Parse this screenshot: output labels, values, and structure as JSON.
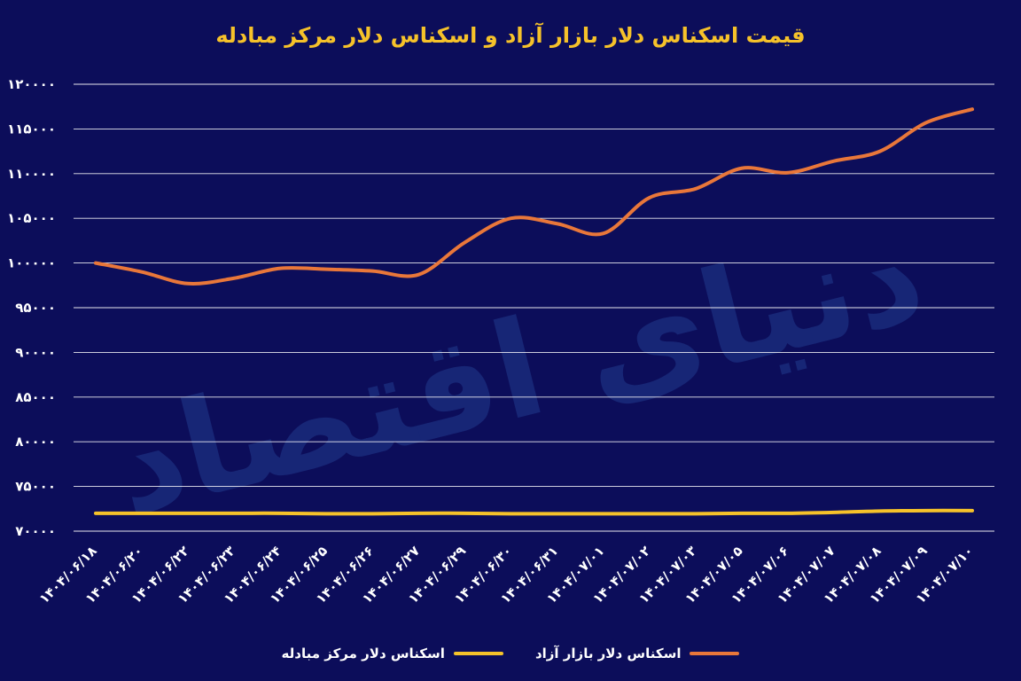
{
  "chart_data": {
    "type": "line",
    "title": "قیمت اسکناس دلار بازار آزاد و اسکناس دلار مرکز مبادله",
    "xlabel": "",
    "ylabel": "",
    "ylim": [
      70000,
      120000
    ],
    "yticks": [
      "120000",
      "115000",
      "110000",
      "105000",
      "100000",
      "95000",
      "90000",
      "85000",
      "80000",
      "75000",
      "70000"
    ],
    "categories": [
      "1404/06/18",
      "1404/06/20",
      "1404/06/22",
      "1404/06/23",
      "1404/06/24",
      "1404/06/25",
      "1404/06/26",
      "1404/06/27",
      "1404/06/29",
      "1404/06/30",
      "1404/06/31",
      "1404/07/01",
      "1404/07/02",
      "1404/07/03",
      "1404/07/05",
      "1404/07/06",
      "1404/07/07",
      "1404/07/08",
      "1404/07/09",
      "1404/07/10"
    ],
    "series": [
      {
        "name": "اسکناس دلار بازار آزاد",
        "color": "#e9773a",
        "values": [
          100000,
          99000,
          97700,
          98300,
          99400,
          99300,
          99100,
          98700,
          102300,
          105000,
          104400,
          103300,
          107300,
          108300,
          110600,
          110100,
          111400,
          112500,
          115700,
          117200
        ]
      },
      {
        "name": "اسکناس دلار مرکز مبادله",
        "color": "#f6c22a",
        "values": [
          72000,
          72000,
          72000,
          72000,
          72000,
          71950,
          71950,
          72000,
          72000,
          71950,
          71950,
          71950,
          71950,
          71950,
          72000,
          72000,
          72100,
          72250,
          72300,
          72300
        ]
      }
    ],
    "grid": true,
    "legend_position": "bottom",
    "watermark": "دنیای اقتصاد"
  }
}
